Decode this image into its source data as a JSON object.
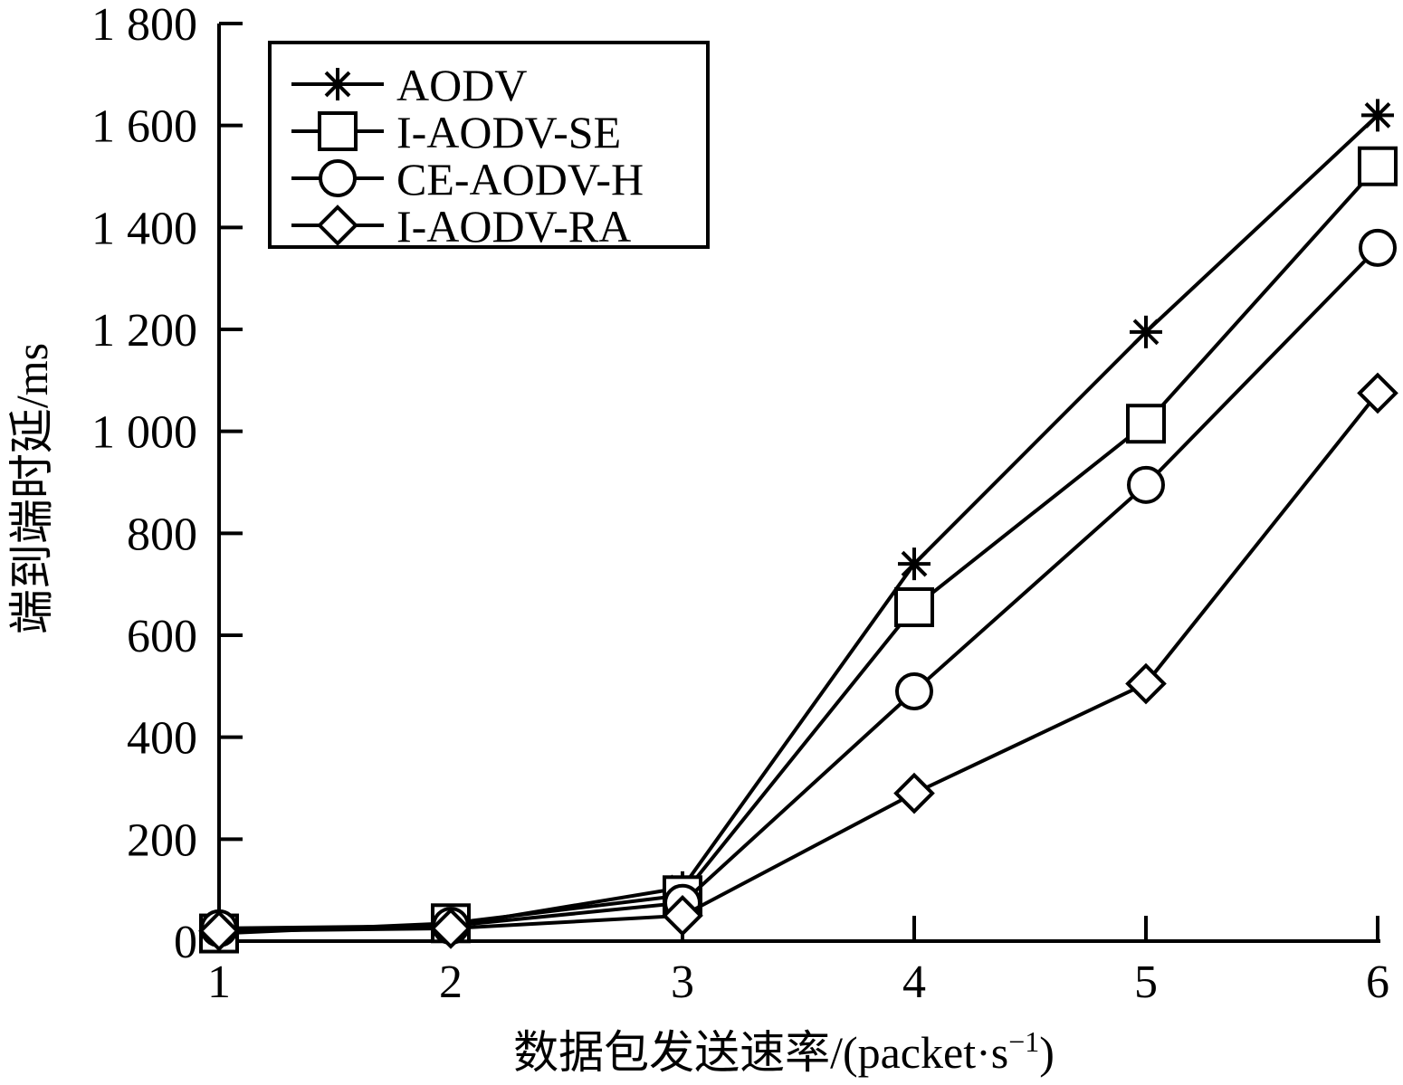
{
  "chart_data": {
    "type": "line",
    "x": [
      1,
      2,
      3,
      4,
      5,
      6
    ],
    "xlabel": "数据包发送速率/(packet·s",
    "xlabel_sup": "−1",
    "xlabel_tail": ")",
    "ylabel": "端到端时延/ms",
    "xlim": [
      1,
      6
    ],
    "ylim": [
      0,
      1800
    ],
    "xticks": [
      "1",
      "2",
      "3",
      "4",
      "5",
      "6"
    ],
    "yticks": [
      "0",
      "200",
      "400",
      "600",
      "800",
      "1 000",
      "1 200",
      "1 400",
      "1 600",
      "1 800"
    ],
    "ytick_values": [
      0,
      200,
      400,
      600,
      800,
      1000,
      1200,
      1400,
      1600,
      1800
    ],
    "legend_position": "top-left",
    "grid": false,
    "series": [
      {
        "name": "AODV",
        "marker": "star",
        "values": [
          20,
          30,
          105,
          740,
          1195,
          1620
        ]
      },
      {
        "name": "I-AODV-SE",
        "marker": "square",
        "values": [
          15,
          35,
          90,
          655,
          1015,
          1520
        ]
      },
      {
        "name": "CE-AODV-H",
        "marker": "circle",
        "values": [
          25,
          30,
          75,
          490,
          895,
          1360
        ]
      },
      {
        "name": "I-AODV-RA",
        "marker": "diamond",
        "values": [
          20,
          25,
          50,
          290,
          505,
          1075
        ]
      }
    ]
  }
}
